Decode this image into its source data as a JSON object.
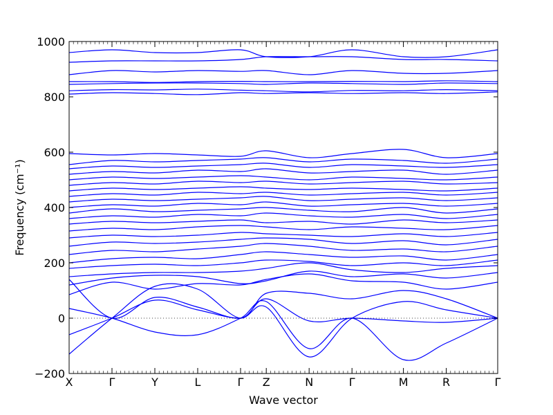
{
  "chart_data": {
    "type": "line",
    "title": "",
    "xlabel": "Wave vector",
    "ylabel": "Frequency (cm⁻¹)",
    "ylim": [
      -200,
      1000
    ],
    "yticks": [
      -200,
      0,
      200,
      400,
      600,
      800,
      1000
    ],
    "ytick_labels": [
      "−200",
      "0",
      "200",
      "400",
      "600",
      "800",
      "1000"
    ],
    "xticks": [
      {
        "label": "X",
        "pos": 0.0
      },
      {
        "label": "Γ",
        "pos": 1.0
      },
      {
        "label": "Y",
        "pos": 2.0
      },
      {
        "label": "L",
        "pos": 3.0
      },
      {
        "label": "Γ",
        "pos": 4.0
      },
      {
        "label": "Z",
        "pos": 4.6
      },
      {
        "label": "N",
        "pos": 5.6
      },
      {
        "label": "Γ",
        "pos": 6.6
      },
      {
        "label": "M",
        "pos": 7.8
      },
      {
        "label": "R",
        "pos": 8.8
      },
      {
        "label": "Γ",
        "pos": 10.0
      }
    ],
    "xlim": [
      0,
      10
    ],
    "zero_line": true,
    "line_color": "#0000ff",
    "grid": false,
    "series": [
      {
        "x": [
          0,
          1,
          2,
          3,
          4,
          4.6,
          5.6,
          6.6,
          7.8,
          8.8,
          10
        ],
        "y": [
          140,
          0,
          75,
          40,
          0,
          70,
          -10,
          0,
          -10,
          -15,
          0
        ]
      },
      {
        "x": [
          0,
          1,
          2,
          3,
          4,
          4.6,
          5.6,
          6.6,
          7.8,
          8.8,
          10
        ],
        "y": [
          35,
          0,
          -50,
          -60,
          0,
          60,
          -110,
          0,
          -150,
          -90,
          0
        ]
      },
      {
        "x": [
          0,
          1,
          2,
          3,
          4,
          4.6,
          5.6,
          6.6,
          7.8,
          8.8,
          10
        ],
        "y": [
          -60,
          0,
          65,
          30,
          0,
          40,
          -140,
          0,
          60,
          30,
          0
        ]
      },
      {
        "x": [
          0,
          1,
          2,
          3,
          4,
          4.6,
          5.6,
          6.6,
          7.8,
          8.8,
          10
        ],
        "y": [
          -130,
          0,
          115,
          105,
          0,
          90,
          90,
          70,
          100,
          70,
          0
        ]
      },
      {
        "x": [
          0,
          1,
          2,
          3,
          4,
          4.6,
          5.6,
          6.6,
          7.8,
          8.8,
          10
        ],
        "y": [
          85,
          130,
          105,
          125,
          120,
          140,
          160,
          135,
          130,
          105,
          130
        ]
      },
      {
        "x": [
          0,
          1,
          2,
          3,
          4,
          4.6,
          5.6,
          6.6,
          7.8,
          8.8,
          10
        ],
        "y": [
          120,
          145,
          155,
          150,
          125,
          135,
          170,
          150,
          160,
          145,
          165
        ]
      },
      {
        "x": [
          0,
          1,
          2,
          3,
          4,
          4.6,
          5.6,
          6.6,
          7.8,
          8.8,
          10
        ],
        "y": [
          150,
          160,
          165,
          165,
          170,
          180,
          200,
          175,
          165,
          180,
          190
        ]
      },
      {
        "x": [
          0,
          1,
          2,
          3,
          4,
          4.6,
          5.6,
          6.6,
          7.8,
          8.8,
          10
        ],
        "y": [
          180,
          190,
          195,
          190,
          200,
          210,
          205,
          190,
          200,
          190,
          210
        ]
      },
      {
        "x": [
          0,
          1,
          2,
          3,
          4,
          4.6,
          5.6,
          6.6,
          7.8,
          8.8,
          10
        ],
        "y": [
          200,
          215,
          220,
          215,
          230,
          240,
          230,
          220,
          225,
          210,
          230
        ]
      },
      {
        "x": [
          0,
          1,
          2,
          3,
          4,
          4.6,
          5.6,
          6.6,
          7.8,
          8.8,
          10
        ],
        "y": [
          230,
          245,
          240,
          250,
          260,
          270,
          260,
          245,
          250,
          240,
          260
        ]
      },
      {
        "x": [
          0,
          1,
          2,
          3,
          4,
          4.6,
          5.6,
          6.6,
          7.8,
          8.8,
          10
        ],
        "y": [
          260,
          275,
          270,
          275,
          285,
          290,
          285,
          270,
          280,
          265,
          285
        ]
      },
      {
        "x": [
          0,
          1,
          2,
          3,
          4,
          4.6,
          5.6,
          6.6,
          7.8,
          8.8,
          10
        ],
        "y": [
          290,
          300,
          295,
          300,
          310,
          305,
          300,
          295,
          305,
          295,
          310
        ]
      },
      {
        "x": [
          0,
          1,
          2,
          3,
          4,
          4.6,
          5.6,
          6.6,
          7.8,
          8.8,
          10
        ],
        "y": [
          315,
          325,
          320,
          330,
          335,
          330,
          320,
          330,
          325,
          320,
          335
        ]
      },
      {
        "x": [
          0,
          1,
          2,
          3,
          4,
          4.6,
          5.6,
          6.6,
          7.8,
          8.8,
          10
        ],
        "y": [
          340,
          350,
          345,
          350,
          355,
          345,
          350,
          340,
          355,
          345,
          355
        ]
      },
      {
        "x": [
          0,
          1,
          2,
          3,
          4,
          4.6,
          5.6,
          6.6,
          7.8,
          8.8,
          10
        ],
        "y": [
          360,
          370,
          365,
          375,
          370,
          380,
          370,
          365,
          375,
          360,
          375
        ]
      },
      {
        "x": [
          0,
          1,
          2,
          3,
          4,
          4.6,
          5.6,
          6.6,
          7.8,
          8.8,
          10
        ],
        "y": [
          380,
          395,
          385,
          390,
          395,
          400,
          390,
          385,
          400,
          380,
          395
        ]
      },
      {
        "x": [
          0,
          1,
          2,
          3,
          4,
          4.6,
          5.6,
          6.6,
          7.8,
          8.8,
          10
        ],
        "y": [
          400,
          410,
          405,
          415,
          410,
          420,
          405,
          410,
          415,
          405,
          415
        ]
      },
      {
        "x": [
          0,
          1,
          2,
          3,
          4,
          4.6,
          5.6,
          6.6,
          7.8,
          8.8,
          10
        ],
        "y": [
          420,
          430,
          425,
          430,
          435,
          440,
          425,
          430,
          435,
          425,
          435
        ]
      },
      {
        "x": [
          0,
          1,
          2,
          3,
          4,
          4.6,
          5.6,
          6.6,
          7.8,
          8.8,
          10
        ],
        "y": [
          440,
          450,
          445,
          455,
          450,
          455,
          445,
          450,
          455,
          445,
          455
        ]
      },
      {
        "x": [
          0,
          1,
          2,
          3,
          4,
          4.6,
          5.6,
          6.6,
          7.8,
          8.8,
          10
        ],
        "y": [
          460,
          470,
          465,
          470,
          475,
          470,
          465,
          470,
          465,
          460,
          470
        ]
      },
      {
        "x": [
          0,
          1,
          2,
          3,
          4,
          4.6,
          5.6,
          6.6,
          7.8,
          8.8,
          10
        ],
        "y": [
          480,
          490,
          485,
          495,
          490,
          495,
          485,
          490,
          495,
          485,
          490
        ]
      },
      {
        "x": [
          0,
          1,
          2,
          3,
          4,
          4.6,
          5.6,
          6.6,
          7.8,
          8.8,
          10
        ],
        "y": [
          500,
          510,
          505,
          510,
          515,
          510,
          500,
          510,
          505,
          500,
          510
        ]
      },
      {
        "x": [
          0,
          1,
          2,
          3,
          4,
          4.6,
          5.6,
          6.6,
          7.8,
          8.8,
          10
        ],
        "y": [
          520,
          530,
          525,
          535,
          530,
          540,
          525,
          530,
          535,
          520,
          535
        ]
      },
      {
        "x": [
          0,
          1,
          2,
          3,
          4,
          4.6,
          5.6,
          6.6,
          7.8,
          8.8,
          10
        ],
        "y": [
          540,
          550,
          545,
          550,
          555,
          560,
          545,
          555,
          550,
          545,
          555
        ]
      },
      {
        "x": [
          0,
          1,
          2,
          3,
          4,
          4.6,
          5.6,
          6.6,
          7.8,
          8.8,
          10
        ],
        "y": [
          555,
          570,
          565,
          570,
          575,
          580,
          565,
          575,
          570,
          560,
          575
        ]
      },
      {
        "x": [
          0,
          1,
          2,
          3,
          4,
          4.6,
          5.6,
          6.6,
          7.8,
          8.8,
          10
        ],
        "y": [
          595,
          590,
          595,
          590,
          585,
          605,
          580,
          595,
          610,
          580,
          595
        ]
      },
      {
        "x": [
          0,
          1,
          2,
          3,
          4,
          4.6,
          5.6,
          6.6,
          7.8,
          8.8,
          10
        ],
        "y": [
          810,
          815,
          812,
          808,
          815,
          812,
          815,
          812,
          815,
          812,
          818
        ]
      },
      {
        "x": [
          0,
          1,
          2,
          3,
          4,
          4.6,
          5.6,
          6.6,
          7.8,
          8.8,
          10
        ],
        "y": [
          822,
          826,
          825,
          828,
          824,
          822,
          818,
          823,
          822,
          826,
          822
        ]
      },
      {
        "x": [
          0,
          1,
          2,
          3,
          4,
          4.6,
          5.6,
          6.6,
          7.8,
          8.8,
          10
        ],
        "y": [
          845,
          848,
          850,
          850,
          848,
          845,
          850,
          848,
          845,
          850,
          848
        ]
      },
      {
        "x": [
          0,
          1,
          2,
          3,
          4,
          4.6,
          5.6,
          6.6,
          7.8,
          8.8,
          10
        ],
        "y": [
          855,
          855,
          852,
          855,
          856,
          855,
          855,
          856,
          855,
          858,
          855
        ]
      },
      {
        "x": [
          0,
          1,
          2,
          3,
          4,
          4.6,
          5.6,
          6.6,
          7.8,
          8.8,
          10
        ],
        "y": [
          880,
          895,
          890,
          895,
          892,
          895,
          880,
          895,
          885,
          885,
          895
        ]
      },
      {
        "x": [
          0,
          1,
          2,
          3,
          4,
          4.6,
          5.6,
          6.6,
          7.8,
          8.8,
          10
        ],
        "y": [
          925,
          930,
          930,
          930,
          935,
          945,
          945,
          945,
          935,
          935,
          930
        ]
      },
      {
        "x": [
          0,
          1,
          2,
          3,
          4,
          4.6,
          5.6,
          6.6,
          7.8,
          8.8,
          10
        ],
        "y": [
          960,
          970,
          960,
          960,
          970,
          945,
          945,
          970,
          945,
          945,
          970
        ]
      }
    ]
  }
}
